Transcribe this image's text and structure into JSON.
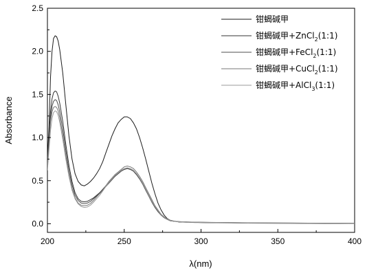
{
  "chart_data": {
    "type": "line",
    "title": "",
    "xlabel": "λ(nm)",
    "ylabel": "Absorbance",
    "xlim": [
      200,
      400
    ],
    "ylim": [
      -0.1,
      2.5
    ],
    "x_ticks": [
      200,
      250,
      300,
      350,
      400
    ],
    "y_ticks": [
      0.0,
      0.5,
      1.0,
      1.5,
      2.0,
      2.5
    ],
    "x_tick_labels": [
      "200",
      "250",
      "300",
      "350",
      "400"
    ],
    "y_tick_labels": [
      "0.0",
      "0.5",
      "1.0",
      "1.5",
      "2.0",
      "2.5"
    ],
    "grid": false,
    "legend_position": "top-right",
    "x": [
      200,
      201,
      202,
      203,
      204,
      205,
      206,
      207,
      208,
      210,
      212,
      214,
      216,
      218,
      220,
      222,
      224,
      226,
      228,
      230,
      232,
      234,
      236,
      238,
      240,
      242,
      244,
      246,
      248,
      250,
      252,
      254,
      256,
      258,
      260,
      262,
      264,
      266,
      268,
      270,
      272,
      274,
      276,
      278,
      280,
      282,
      284,
      286,
      288,
      290,
      292,
      294,
      296,
      298,
      300,
      310,
      320,
      330,
      340,
      350,
      360,
      370,
      380,
      390,
      400
    ],
    "series": [
      {
        "name": "钳蝎碱甲",
        "color": "#1a1a1a",
        "values": [
          0.75,
          1.1,
          1.7,
          2.0,
          2.15,
          2.18,
          2.17,
          2.12,
          2.02,
          1.75,
          1.38,
          1.02,
          0.75,
          0.58,
          0.49,
          0.45,
          0.44,
          0.46,
          0.49,
          0.53,
          0.58,
          0.64,
          0.72,
          0.82,
          0.92,
          1.02,
          1.1,
          1.17,
          1.21,
          1.24,
          1.24,
          1.22,
          1.17,
          1.1,
          1.0,
          0.88,
          0.75,
          0.61,
          0.47,
          0.35,
          0.24,
          0.16,
          0.1,
          0.06,
          0.04,
          0.03,
          0.025,
          0.02,
          0.02,
          0.018,
          0.017,
          0.016,
          0.015,
          0.015,
          0.014,
          0.012,
          0.01,
          0.008,
          0.007,
          0.006,
          0.005,
          0.004,
          0.003,
          0.003,
          0.003
        ]
      },
      {
        "name": "钳蝎碱甲+ZnCl2(1:1)",
        "color": "#333333",
        "values": [
          0.7,
          1.0,
          1.3,
          1.45,
          1.52,
          1.54,
          1.53,
          1.48,
          1.4,
          1.19,
          0.92,
          0.68,
          0.49,
          0.36,
          0.29,
          0.26,
          0.255,
          0.26,
          0.28,
          0.3,
          0.33,
          0.36,
          0.4,
          0.44,
          0.48,
          0.52,
          0.55,
          0.58,
          0.61,
          0.63,
          0.64,
          0.63,
          0.61,
          0.57,
          0.52,
          0.46,
          0.39,
          0.32,
          0.25,
          0.19,
          0.14,
          0.1,
          0.07,
          0.05,
          0.035,
          0.03,
          0.025,
          0.022,
          0.02,
          0.02,
          0.019,
          0.018,
          0.018,
          0.017,
          0.016,
          0.014,
          0.012,
          0.01,
          0.009,
          0.008,
          0.007,
          0.006,
          0.005,
          0.005,
          0.004
        ]
      },
      {
        "name": "钳蝎碱甲+FeCl2(1:1)",
        "color": "#4d4d4d",
        "values": [
          0.68,
          0.95,
          1.22,
          1.36,
          1.42,
          1.44,
          1.43,
          1.38,
          1.3,
          1.1,
          0.85,
          0.62,
          0.45,
          0.33,
          0.27,
          0.24,
          0.235,
          0.24,
          0.26,
          0.29,
          0.32,
          0.35,
          0.39,
          0.43,
          0.47,
          0.51,
          0.55,
          0.58,
          0.61,
          0.63,
          0.64,
          0.63,
          0.61,
          0.58,
          0.53,
          0.47,
          0.4,
          0.33,
          0.26,
          0.2,
          0.15,
          0.11,
          0.075,
          0.055,
          0.04,
          0.032,
          0.027,
          0.024,
          0.022,
          0.021,
          0.02,
          0.019,
          0.018,
          0.018,
          0.017,
          0.015,
          0.013,
          0.011,
          0.01,
          0.009,
          0.008,
          0.007,
          0.006,
          0.005,
          0.005
        ]
      },
      {
        "name": "钳蝎碱甲+CuCl2(1:1)",
        "color": "#777777",
        "values": [
          0.66,
          0.92,
          1.18,
          1.3,
          1.35,
          1.36,
          1.35,
          1.31,
          1.23,
          1.03,
          0.79,
          0.57,
          0.41,
          0.3,
          0.24,
          0.215,
          0.21,
          0.215,
          0.235,
          0.27,
          0.31,
          0.35,
          0.39,
          0.44,
          0.49,
          0.53,
          0.57,
          0.6,
          0.63,
          0.66,
          0.67,
          0.66,
          0.64,
          0.6,
          0.55,
          0.49,
          0.42,
          0.35,
          0.28,
          0.21,
          0.16,
          0.11,
          0.08,
          0.055,
          0.04,
          0.033,
          0.028,
          0.025,
          0.023,
          0.022,
          0.021,
          0.02,
          0.019,
          0.019,
          0.018,
          0.016,
          0.014,
          0.012,
          0.011,
          0.01,
          0.009,
          0.008,
          0.007,
          0.006,
          0.006
        ]
      },
      {
        "name": "钳蝎碱甲+AlCl3(1:1)",
        "color": "#999999",
        "values": [
          0.62,
          0.85,
          1.08,
          1.22,
          1.29,
          1.31,
          1.3,
          1.26,
          1.18,
          0.98,
          0.75,
          0.55,
          0.39,
          0.29,
          0.23,
          0.2,
          0.19,
          0.195,
          0.215,
          0.25,
          0.29,
          0.33,
          0.38,
          0.43,
          0.48,
          0.52,
          0.56,
          0.59,
          0.62,
          0.64,
          0.65,
          0.64,
          0.62,
          0.58,
          0.53,
          0.47,
          0.4,
          0.33,
          0.26,
          0.2,
          0.15,
          0.105,
          0.075,
          0.052,
          0.038,
          0.031,
          0.026,
          0.023,
          0.021,
          0.02,
          0.019,
          0.018,
          0.018,
          0.017,
          0.016,
          0.014,
          0.012,
          0.01,
          0.009,
          0.008,
          0.007,
          0.006,
          0.005,
          0.005,
          0.004
        ]
      }
    ]
  },
  "legend": [
    {
      "base": "钳蝎碱甲",
      "sub": "",
      "rest": ""
    },
    {
      "base": "钳蝎碱甲+ZnCl",
      "sub": "2",
      "rest": "(1:1)"
    },
    {
      "base": "钳蝎碱甲+FeCl",
      "sub": "2",
      "rest": "(1:1)"
    },
    {
      "base": "钳蝎碱甲+CuCl",
      "sub": "2",
      "rest": "(1:1)"
    },
    {
      "base": "钳蝎碱甲+AlCl",
      "sub": "3",
      "rest": "(1:1)"
    }
  ]
}
